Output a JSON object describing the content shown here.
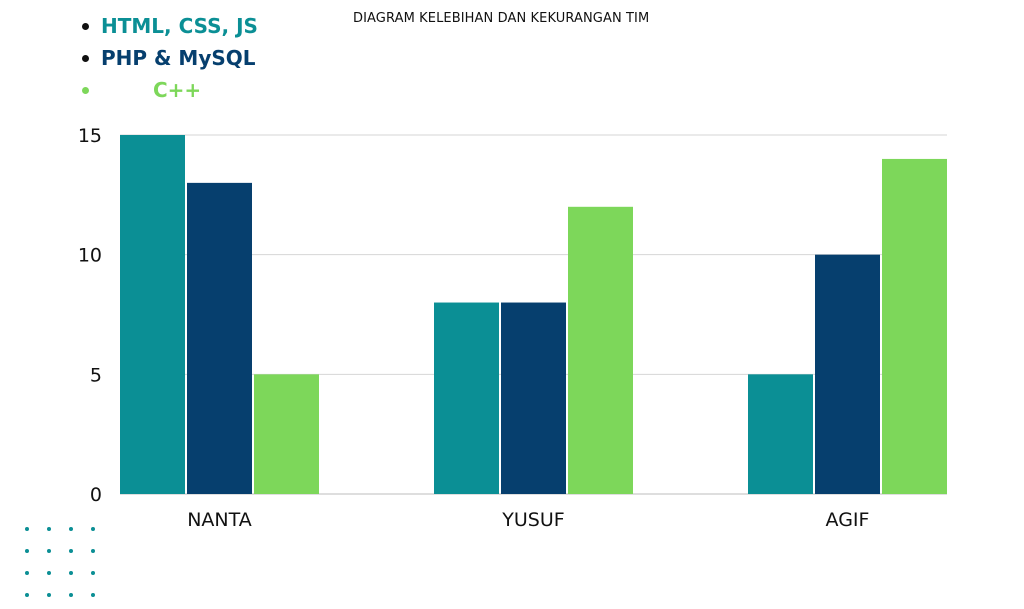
{
  "chart_data": {
    "type": "bar",
    "title": "DIAGRAM KELEBIHAN DAN KEKURANGAN TIM",
    "categories": [
      "NANTA",
      "YUSUF",
      "AGIF"
    ],
    "series": [
      {
        "name": "HTML, CSS, JS",
        "color": "#0b8f95",
        "values": [
          15,
          8,
          5
        ]
      },
      {
        "name": "PHP & MySQL",
        "color": "#063f6e",
        "values": [
          13,
          8,
          10
        ]
      },
      {
        "name": "C++",
        "color": "#7dd75a",
        "values": [
          5,
          12,
          14
        ]
      }
    ],
    "yticks": [
      "0",
      "5",
      "10",
      "15"
    ],
    "ylim": [
      0,
      15
    ],
    "grid": true,
    "legend_position": "top-left"
  },
  "decoration": {
    "dot_color": "#0b8f95"
  }
}
